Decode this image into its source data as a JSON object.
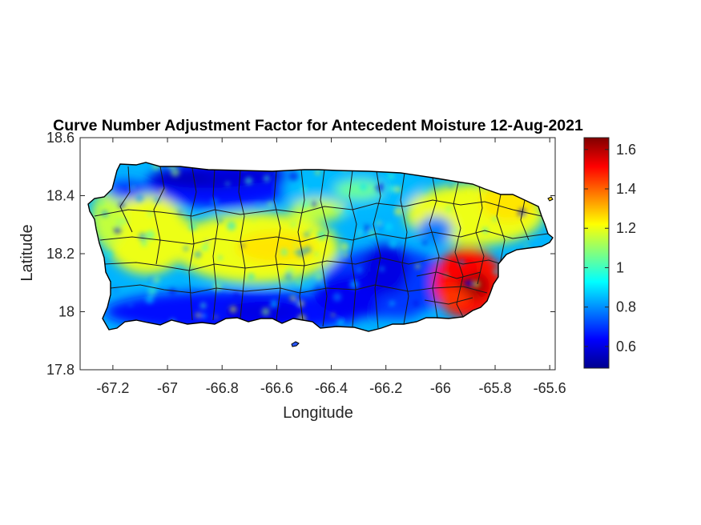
{
  "title": "Curve Number Adjustment Factor for Antecedent Moisture 12-Aug-2021",
  "map": {
    "xlabel": "Longitude",
    "ylabel": "Latitude",
    "xlim": [
      -67.32,
      -65.58
    ],
    "ylim": [
      17.8,
      18.6
    ],
    "xticks": [
      "-67.2",
      "-67",
      "-66.8",
      "-66.6",
      "-66.4",
      "-66.2",
      "-66",
      "-65.8",
      "-65.6"
    ],
    "xtick_values": [
      -67.2,
      -67.0,
      -66.8,
      -66.6,
      -66.4,
      -66.2,
      -66.0,
      -65.8,
      -65.6
    ],
    "yticks": [
      "18.6",
      "18.4",
      "18.2",
      "18",
      "17.8"
    ],
    "ytick_values": [
      18.6,
      18.4,
      18.2,
      18.0,
      17.8
    ],
    "region": "Puerto Rico",
    "grid": false,
    "outline_color": "#000000"
  },
  "colorbar": {
    "colormap": "jet",
    "range": [
      0.49,
      1.66
    ],
    "ticks": [
      "1.6",
      "1.4",
      "1.2",
      "1",
      "0.8",
      "0.6"
    ],
    "tick_values": [
      1.6,
      1.4,
      1.2,
      1.0,
      0.8,
      0.6
    ],
    "stops": [
      "#00008f",
      "#0000ff",
      "#0080ff",
      "#00ffff",
      "#80ff80",
      "#ffff00",
      "#ff8000",
      "#ff0000",
      "#800000"
    ]
  },
  "chart_data": {
    "type": "heatmap",
    "title": "Curve Number Adjustment Factor for Antecedent Moisture 12-Aug-2021",
    "xlabel": "Longitude",
    "ylabel": "Latitude",
    "xlim": [
      -67.32,
      -65.58
    ],
    "ylim": [
      17.8,
      18.6
    ],
    "value_range": [
      0.49,
      1.66
    ],
    "zones": [
      {
        "area": "north coast west",
        "lon": [
          -67.05,
          -66.55
        ],
        "lat": [
          18.38,
          18.5
        ],
        "value": 0.65
      },
      {
        "area": "north coast central",
        "lon": [
          -66.55,
          -66.1
        ],
        "lat": [
          18.36,
          18.49
        ],
        "value": 0.85
      },
      {
        "area": "west interior",
        "lon": [
          -67.2,
          -66.95
        ],
        "lat": [
          18.15,
          18.38
        ],
        "value": 1.2
      },
      {
        "area": "central interior",
        "lon": [
          -66.95,
          -66.4
        ],
        "lat": [
          18.12,
          18.32
        ],
        "value": 1.2
      },
      {
        "area": "northeast",
        "lon": [
          -66.1,
          -65.65
        ],
        "lat": [
          18.25,
          18.42
        ],
        "value": 1.2
      },
      {
        "area": "southeast interior",
        "lon": [
          -66.4,
          -66.0
        ],
        "lat": [
          18.0,
          18.2
        ],
        "value": 0.7
      },
      {
        "area": "south coast",
        "lon": [
          -67.2,
          -66.3
        ],
        "lat": [
          17.95,
          18.05
        ],
        "value": 0.65
      },
      {
        "area": "east coast",
        "lon": [
          -66.0,
          -65.8
        ],
        "lat": [
          18.0,
          18.2
        ],
        "value": 1.5
      }
    ]
  }
}
